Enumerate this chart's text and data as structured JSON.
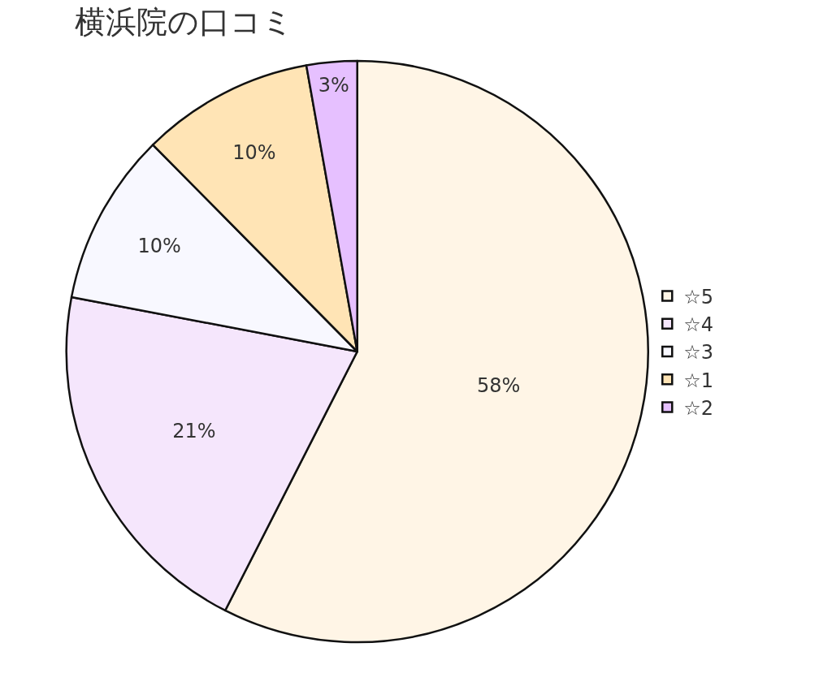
{
  "chart_data": {
    "type": "pie",
    "title": "横浜院の口コミ",
    "categories": [
      "☆5",
      "☆4",
      "☆3",
      "☆1",
      "☆2"
    ],
    "values": [
      57.5,
      20.5,
      9.6,
      9.6,
      2.8
    ],
    "value_labels": [
      "58%",
      "21%",
      "10%",
      "10%",
      "3%"
    ],
    "colors": [
      "#fff5e6",
      "#f5e6fc",
      "#f8f8ff",
      "#ffe4b5",
      "#e6c0ff"
    ],
    "legend": "right"
  }
}
